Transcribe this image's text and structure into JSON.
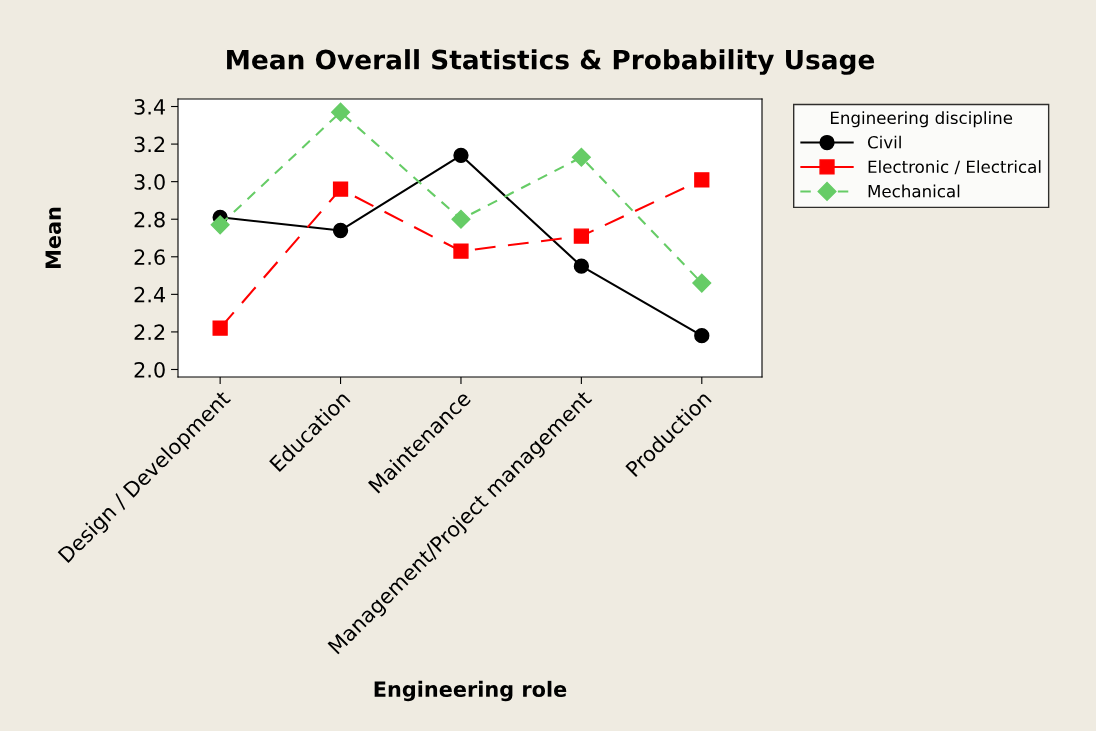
{
  "chart_data": {
    "type": "line",
    "title": "Mean Overall Statistics & Probability Usage",
    "xlabel": "Engineering role",
    "ylabel": "Mean",
    "legend_title": "Engineering discipline",
    "categories": [
      "Design / Development",
      "Education",
      "Maintenance",
      "Management/Project management",
      "Production"
    ],
    "series": [
      {
        "name": "Civil",
        "color": "#000000",
        "marker": "circle",
        "line_style": "solid",
        "values": [
          2.81,
          2.74,
          3.14,
          2.55,
          2.18
        ]
      },
      {
        "name": "Electronic / Electrical",
        "color": "#ff0000",
        "marker": "square",
        "line_style": "dashed",
        "values": [
          2.22,
          2.96,
          2.63,
          2.71,
          3.01
        ]
      },
      {
        "name": "Mechanical",
        "color": "#66cc66",
        "marker": "diamond",
        "line_style": "dashed",
        "values": [
          2.77,
          3.37,
          2.8,
          3.13,
          2.46
        ]
      }
    ],
    "ylim": [
      1.96,
      3.44
    ],
    "yticks": [
      {
        "value": 2.0,
        "label": "2.0"
      },
      {
        "value": 2.2,
        "label": "2.2"
      },
      {
        "value": 2.4,
        "label": "2.4"
      },
      {
        "value": 2.6,
        "label": "2.6"
      },
      {
        "value": 2.8,
        "label": "2.8"
      },
      {
        "value": 3.0,
        "label": "3.0"
      },
      {
        "value": 3.2,
        "label": "3.2"
      },
      {
        "value": 3.4,
        "label": "3.4"
      }
    ],
    "grid": false,
    "legend": "right"
  }
}
